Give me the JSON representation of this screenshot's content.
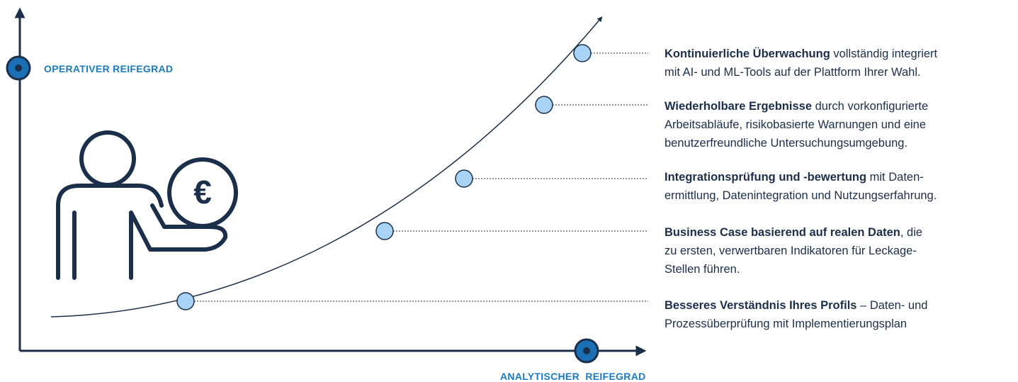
{
  "axes": {
    "y_label": "OPERATIVER REIFEGRAD",
    "x_label": "ANALYTISCHER  REIFEGRAD"
  },
  "coin_symbol": "€",
  "stages": [
    {
      "title": "Kontinuierliche Überwachung",
      "lines": [
        " vollständig integriert",
        "mit AI- und ML-Tools auf der Plattform Ihrer Wahl."
      ]
    },
    {
      "title": "Wiederholbare Ergebnisse",
      "lines": [
        " durch vorkonfigurierte",
        "Arbeitsabläufe, risikobasierte Warnungen und eine",
        "benutzerfreundliche Untersuchungsumgebung."
      ]
    },
    {
      "title": "Integrationsprüfung und -bewertung",
      "lines": [
        " mit Daten-",
        "ermittlung, Datenintegration und Nutzungserfahrung."
      ]
    },
    {
      "title": "Business Case basierend auf realen Daten",
      "lines": [
        ", die",
        "zu ersten, verwertbaren Indikatoren für Leckage-",
        "Stellen führen."
      ]
    },
    {
      "title": "Besseres Verständnis Ihres Profils",
      "lines": [
        " – Daten- und",
        "Prozessüberprüfung mit Implementierungsplan"
      ]
    }
  ]
}
